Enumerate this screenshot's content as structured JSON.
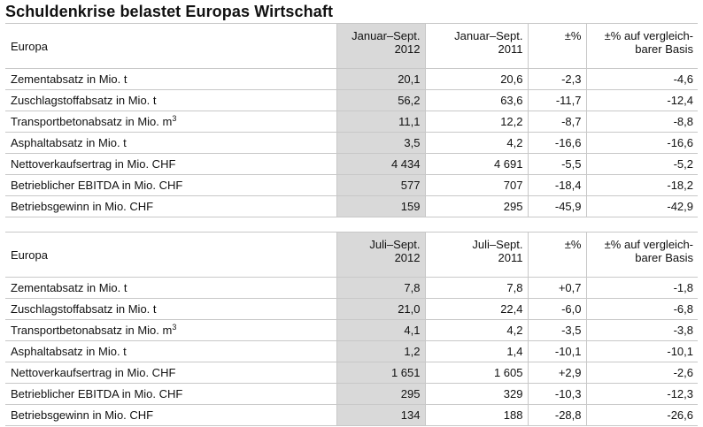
{
  "title": "Schuldenkrise belastet Europas Wirtschaft",
  "tables": [
    {
      "header": {
        "label": "Europa",
        "col1": [
          "Januar–Sept.",
          "2012"
        ],
        "col2": [
          "Januar–Sept.",
          "2011"
        ],
        "col3": "±%",
        "col4": [
          "±% auf vergleich-",
          "barer Basis"
        ]
      },
      "rows": [
        {
          "label": "Zementabsatz in Mio. t",
          "sup": "",
          "v2012": "20,1",
          "v2011": "20,6",
          "pct": "-2,3",
          "pct_basis": "-4,6"
        },
        {
          "label": "Zuschlagstoffabsatz in Mio. t",
          "sup": "",
          "v2012": "56,2",
          "v2011": "63,6",
          "pct": "-11,7",
          "pct_basis": "-12,4"
        },
        {
          "label": "Transportbetonabsatz in Mio. m",
          "sup": "3",
          "v2012": "11,1",
          "v2011": "12,2",
          "pct": "-8,7",
          "pct_basis": "-8,8"
        },
        {
          "label": "Asphaltabsatz in Mio. t",
          "sup": "",
          "v2012": "3,5",
          "v2011": "4,2",
          "pct": "-16,6",
          "pct_basis": "-16,6"
        },
        {
          "label": "Nettoverkaufsertrag in Mio. CHF",
          "sup": "",
          "v2012": "4 434",
          "v2011": "4 691",
          "pct": "-5,5",
          "pct_basis": "-5,2"
        },
        {
          "label": "Betrieblicher EBITDA in Mio. CHF",
          "sup": "",
          "v2012": "577",
          "v2011": "707",
          "pct": "-18,4",
          "pct_basis": "-18,2"
        },
        {
          "label": "Betriebsgewinn in Mio. CHF",
          "sup": "",
          "v2012": "159",
          "v2011": "295",
          "pct": "-45,9",
          "pct_basis": "-42,9"
        }
      ]
    },
    {
      "header": {
        "label": "Europa",
        "col1": [
          "Juli–Sept.",
          "2012"
        ],
        "col2": [
          "Juli–Sept.",
          "2011"
        ],
        "col3": "±%",
        "col4": [
          "±% auf vergleich-",
          "barer Basis"
        ]
      },
      "rows": [
        {
          "label": "Zementabsatz in Mio. t",
          "sup": "",
          "v2012": "7,8",
          "v2011": "7,8",
          "pct": "+0,7",
          "pct_basis": "-1,8"
        },
        {
          "label": "Zuschlagstoffabsatz in Mio. t",
          "sup": "",
          "v2012": "21,0",
          "v2011": "22,4",
          "pct": "-6,0",
          "pct_basis": "-6,8"
        },
        {
          "label": "Transportbetonabsatz in Mio. m",
          "sup": "3",
          "v2012": "4,1",
          "v2011": "4,2",
          "pct": "-3,5",
          "pct_basis": "-3,8"
        },
        {
          "label": "Asphaltabsatz in Mio. t",
          "sup": "",
          "v2012": "1,2",
          "v2011": "1,4",
          "pct": "-10,1",
          "pct_basis": "-10,1"
        },
        {
          "label": "Nettoverkaufsertrag in Mio. CHF",
          "sup": "",
          "v2012": "1 651",
          "v2011": "1 605",
          "pct": "+2,9",
          "pct_basis": "-2,6"
        },
        {
          "label": "Betrieblicher EBITDA in Mio. CHF",
          "sup": "",
          "v2012": "295",
          "v2011": "329",
          "pct": "-10,3",
          "pct_basis": "-12,3"
        },
        {
          "label": "Betriebsgewinn in Mio. CHF",
          "sup": "",
          "v2012": "134",
          "v2011": "188",
          "pct": "-28,8",
          "pct_basis": "-26,6"
        }
      ]
    }
  ]
}
